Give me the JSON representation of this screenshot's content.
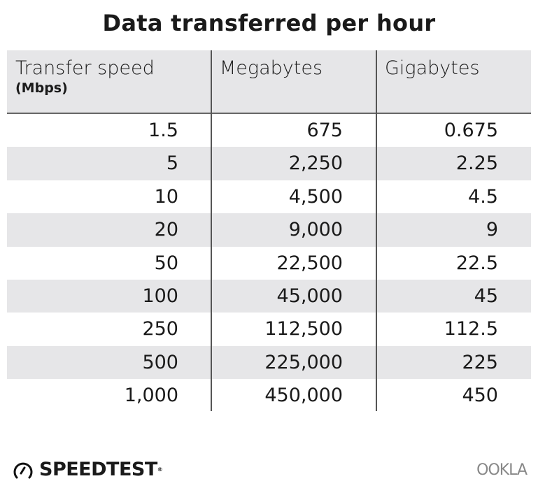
{
  "title": "Data transferred per hour",
  "headers": [
    {
      "label": "Transfer speed",
      "sub": "(Mbps)"
    },
    {
      "label": "Megabytes"
    },
    {
      "label": "Gigabytes"
    }
  ],
  "rows": [
    [
      "1.5",
      "675",
      "0.675"
    ],
    [
      "5",
      "2,250",
      "2.25"
    ],
    [
      "10",
      "4,500",
      "4.5"
    ],
    [
      "20",
      "9,000",
      "9"
    ],
    [
      "50",
      "22,500",
      "22.5"
    ],
    [
      "100",
      "45,000",
      "45"
    ],
    [
      "250",
      "112,500",
      "112.5"
    ],
    [
      "500",
      "225,000",
      "225"
    ],
    [
      "1,000",
      "450,000",
      "450"
    ]
  ],
  "footer": {
    "left_logo": "SPEEDTEST",
    "right_logo": "OOKLA"
  }
}
